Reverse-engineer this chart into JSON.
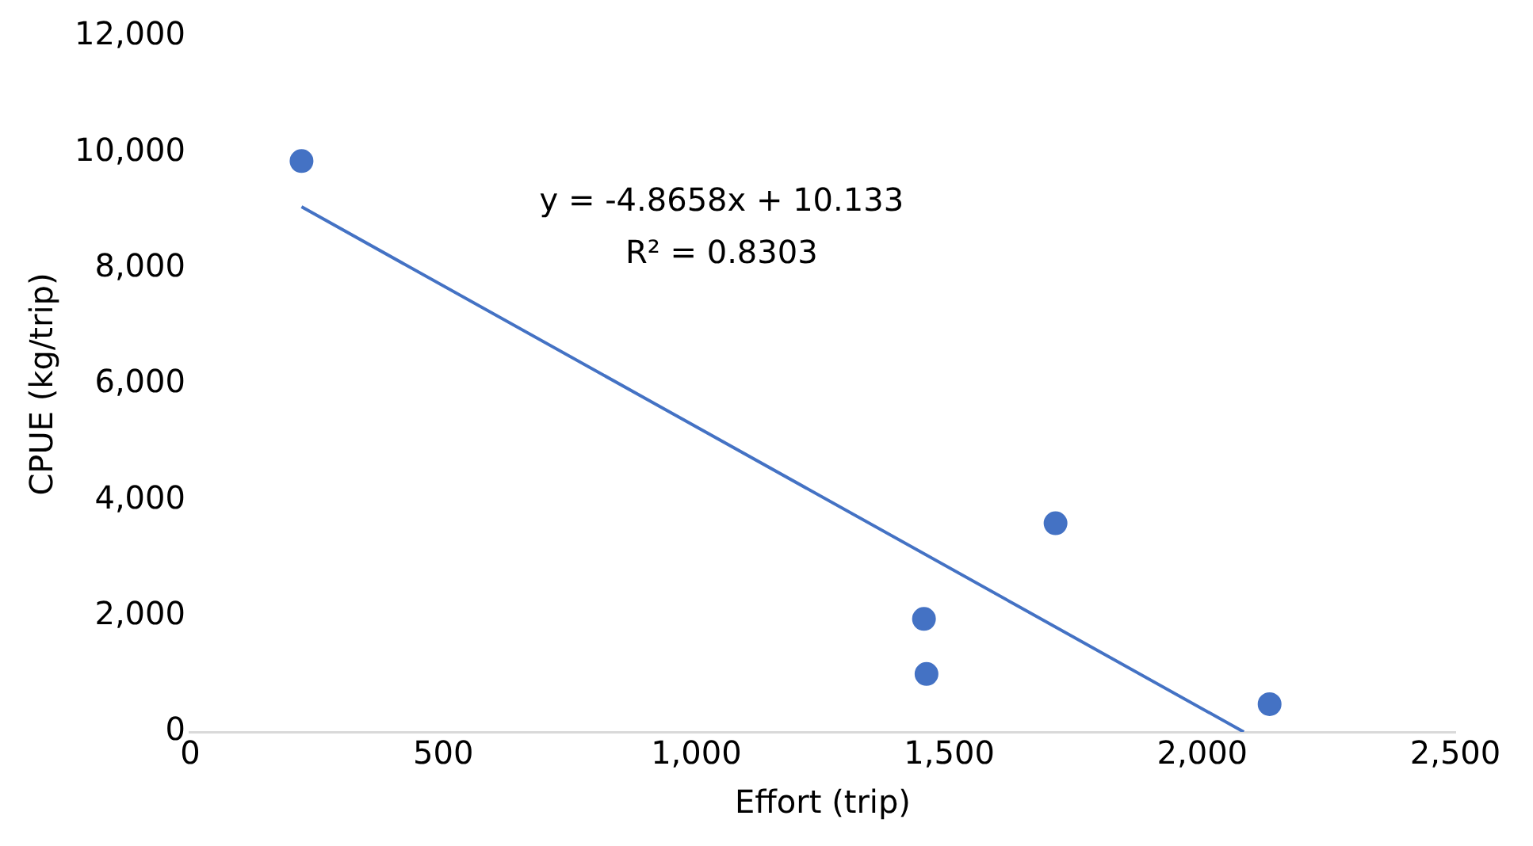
{
  "chart_data": {
    "type": "scatter",
    "xlabel": "Effort (trip)",
    "ylabel": "CPUE (kg/trip)",
    "xlim": [
      0,
      2500
    ],
    "xticks": [
      0,
      500,
      {
        "value": 1000,
        "label": "1,000"
      },
      {
        "value": 1500,
        "label": "1,500"
      },
      {
        "value": 2000,
        "label": "2,000"
      },
      {
        "value": 2500,
        "label": "2,500"
      }
    ],
    "ylim": [
      0,
      12000
    ],
    "yticks": [
      0,
      {
        "value": 2000,
        "label": "2,000"
      },
      {
        "value": 4000,
        "label": "4,000"
      },
      {
        "value": 6000,
        "label": "6,000"
      },
      {
        "value": 8000,
        "label": "8,000"
      },
      {
        "value": 10000,
        "label": "10,000"
      },
      {
        "value": 12000,
        "label": "12,000"
      }
    ],
    "grid": false,
    "legend": false,
    "series": [
      {
        "type": "scatter",
        "marker": "circle",
        "color": "#4472c4",
        "x": [
          220,
          1450,
          1455,
          1710,
          2133
        ],
        "values": [
          9850,
          1950,
          1000,
          3600,
          480
        ]
      },
      {
        "type": "line",
        "marker": "none",
        "color": "#4472c4",
        "x": [
          220,
          2082
        ],
        "values": [
          9060,
          0
        ]
      }
    ],
    "annotations": [
      "y = -4.8658x + 10.133",
      "R² = 0.8303"
    ]
  }
}
